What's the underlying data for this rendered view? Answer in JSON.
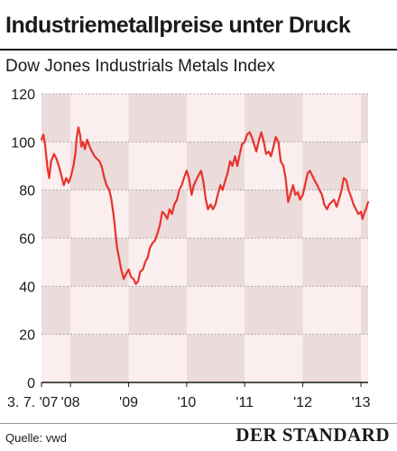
{
  "header": {
    "title": "Industriemetallpreise unter Druck",
    "subtitle": "Dow Jones Industrials Metals Index"
  },
  "footer": {
    "source": "Quelle: vwd",
    "logo": "DER STANDARD"
  },
  "colors": {
    "line": "#e8332c",
    "band_dark": "#ecdbdb",
    "band_light": "#fbeeee",
    "grid": "#aaaaaa",
    "axis": "#1a1a1a"
  },
  "chart_data": {
    "type": "line",
    "title": "Industriemetallpreise unter Druck",
    "subtitle": "Dow Jones Industrials Metals Index",
    "xlabel": "",
    "ylabel": "",
    "xlim": [
      "2007-07-03",
      "2013-02-15"
    ],
    "ylim": [
      0,
      120
    ],
    "yticks": [
      0,
      20,
      40,
      60,
      80,
      100,
      120
    ],
    "xticks": [
      {
        "date": "2007-07-03",
        "label": "3. 7. '07"
      },
      {
        "date": "2008-01-01",
        "label": "'08"
      },
      {
        "date": "2009-01-01",
        "label": "'09"
      },
      {
        "date": "2010-01-01",
        "label": "'10"
      },
      {
        "date": "2011-01-01",
        "label": "'11"
      },
      {
        "date": "2012-01-01",
        "label": "'12"
      },
      {
        "date": "2013-01-01",
        "label": "'13"
      }
    ],
    "grid": true,
    "legend": "none",
    "series": [
      {
        "values": [
          [
            "2007-07-03",
            101
          ],
          [
            "2007-07-15",
            103
          ],
          [
            "2007-07-25",
            99
          ],
          [
            "2007-08-10",
            89
          ],
          [
            "2007-08-20",
            85
          ],
          [
            "2007-09-01",
            92
          ],
          [
            "2007-09-20",
            95
          ],
          [
            "2007-10-05",
            93
          ],
          [
            "2007-10-20",
            90
          ],
          [
            "2007-11-05",
            86
          ],
          [
            "2007-11-20",
            82
          ],
          [
            "2007-12-05",
            85
          ],
          [
            "2007-12-20",
            83
          ],
          [
            "2008-01-05",
            86
          ],
          [
            "2008-01-20",
            90
          ],
          [
            "2008-02-01",
            95
          ],
          [
            "2008-02-10",
            102
          ],
          [
            "2008-02-20",
            106
          ],
          [
            "2008-03-01",
            103
          ],
          [
            "2008-03-10",
            98
          ],
          [
            "2008-03-20",
            100
          ],
          [
            "2008-04-01",
            97
          ],
          [
            "2008-04-15",
            101
          ],
          [
            "2008-05-01",
            98
          ],
          [
            "2008-05-15",
            96
          ],
          [
            "2008-06-01",
            94
          ],
          [
            "2008-06-15",
            93
          ],
          [
            "2008-07-01",
            92
          ],
          [
            "2008-07-15",
            90
          ],
          [
            "2008-08-01",
            85
          ],
          [
            "2008-08-15",
            82
          ],
          [
            "2008-09-01",
            80
          ],
          [
            "2008-09-15",
            76
          ],
          [
            "2008-10-01",
            68
          ],
          [
            "2008-10-10",
            62
          ],
          [
            "2008-10-20",
            56
          ],
          [
            "2008-11-01",
            52
          ],
          [
            "2008-11-15",
            47
          ],
          [
            "2008-12-01",
            43
          ],
          [
            "2008-12-15",
            45
          ],
          [
            "2009-01-01",
            47
          ],
          [
            "2009-01-15",
            44
          ],
          [
            "2009-02-01",
            43
          ],
          [
            "2009-02-15",
            41
          ],
          [
            "2009-03-01",
            42
          ],
          [
            "2009-03-15",
            46
          ],
          [
            "2009-04-01",
            47
          ],
          [
            "2009-04-15",
            50
          ],
          [
            "2009-05-01",
            52
          ],
          [
            "2009-05-15",
            56
          ],
          [
            "2009-06-01",
            58
          ],
          [
            "2009-06-15",
            59
          ],
          [
            "2009-07-01",
            62
          ],
          [
            "2009-07-15",
            65
          ],
          [
            "2009-08-01",
            71
          ],
          [
            "2009-08-15",
            70
          ],
          [
            "2009-09-01",
            68
          ],
          [
            "2009-09-15",
            72
          ],
          [
            "2009-10-01",
            70
          ],
          [
            "2009-10-15",
            74
          ],
          [
            "2009-11-01",
            76
          ],
          [
            "2009-11-15",
            80
          ],
          [
            "2009-12-01",
            82
          ],
          [
            "2009-12-15",
            85
          ],
          [
            "2010-01-01",
            88
          ],
          [
            "2010-01-15",
            85
          ],
          [
            "2010-02-01",
            78
          ],
          [
            "2010-02-15",
            82
          ],
          [
            "2010-03-01",
            84
          ],
          [
            "2010-03-15",
            86
          ],
          [
            "2010-04-01",
            88
          ],
          [
            "2010-04-15",
            84
          ],
          [
            "2010-05-01",
            76
          ],
          [
            "2010-05-15",
            72
          ],
          [
            "2010-06-01",
            74
          ],
          [
            "2010-06-15",
            72
          ],
          [
            "2010-07-01",
            74
          ],
          [
            "2010-07-15",
            78
          ],
          [
            "2010-08-01",
            82
          ],
          [
            "2010-08-15",
            80
          ],
          [
            "2010-09-01",
            84
          ],
          [
            "2010-09-15",
            87
          ],
          [
            "2010-10-01",
            92
          ],
          [
            "2010-10-15",
            90
          ],
          [
            "2010-11-01",
            94
          ],
          [
            "2010-11-15",
            90
          ],
          [
            "2010-12-01",
            95
          ],
          [
            "2010-12-15",
            99
          ],
          [
            "2011-01-01",
            100
          ],
          [
            "2011-01-15",
            103
          ],
          [
            "2011-02-01",
            104
          ],
          [
            "2011-02-15",
            102
          ],
          [
            "2011-03-01",
            99
          ],
          [
            "2011-03-15",
            96
          ],
          [
            "2011-04-01",
            101
          ],
          [
            "2011-04-15",
            104
          ],
          [
            "2011-05-01",
            100
          ],
          [
            "2011-05-15",
            95
          ],
          [
            "2011-06-01",
            96
          ],
          [
            "2011-06-15",
            94
          ],
          [
            "2011-07-01",
            98
          ],
          [
            "2011-07-15",
            102
          ],
          [
            "2011-08-01",
            100
          ],
          [
            "2011-08-15",
            92
          ],
          [
            "2011-09-01",
            90
          ],
          [
            "2011-09-15",
            85
          ],
          [
            "2011-10-01",
            75
          ],
          [
            "2011-10-15",
            78
          ],
          [
            "2011-11-01",
            82
          ],
          [
            "2011-11-15",
            78
          ],
          [
            "2011-12-01",
            79
          ],
          [
            "2011-12-15",
            76
          ],
          [
            "2012-01-01",
            78
          ],
          [
            "2012-01-15",
            82
          ],
          [
            "2012-02-01",
            87
          ],
          [
            "2012-02-15",
            88
          ],
          [
            "2012-03-01",
            86
          ],
          [
            "2012-03-15",
            84
          ],
          [
            "2012-04-01",
            82
          ],
          [
            "2012-04-15",
            80
          ],
          [
            "2012-05-01",
            78
          ],
          [
            "2012-05-15",
            74
          ],
          [
            "2012-06-01",
            72
          ],
          [
            "2012-06-15",
            74
          ],
          [
            "2012-07-01",
            75
          ],
          [
            "2012-07-15",
            76
          ],
          [
            "2012-08-01",
            73
          ],
          [
            "2012-08-15",
            76
          ],
          [
            "2012-09-01",
            80
          ],
          [
            "2012-09-15",
            85
          ],
          [
            "2012-10-01",
            84
          ],
          [
            "2012-10-15",
            80
          ],
          [
            "2012-11-01",
            77
          ],
          [
            "2012-11-15",
            74
          ],
          [
            "2012-12-01",
            72
          ],
          [
            "2012-12-15",
            70
          ],
          [
            "2013-01-01",
            71
          ],
          [
            "2013-01-10",
            68
          ],
          [
            "2013-01-20",
            70
          ],
          [
            "2013-02-01",
            72
          ],
          [
            "2013-02-10",
            74
          ],
          [
            "2013-02-15",
            75
          ]
        ]
      }
    ]
  }
}
